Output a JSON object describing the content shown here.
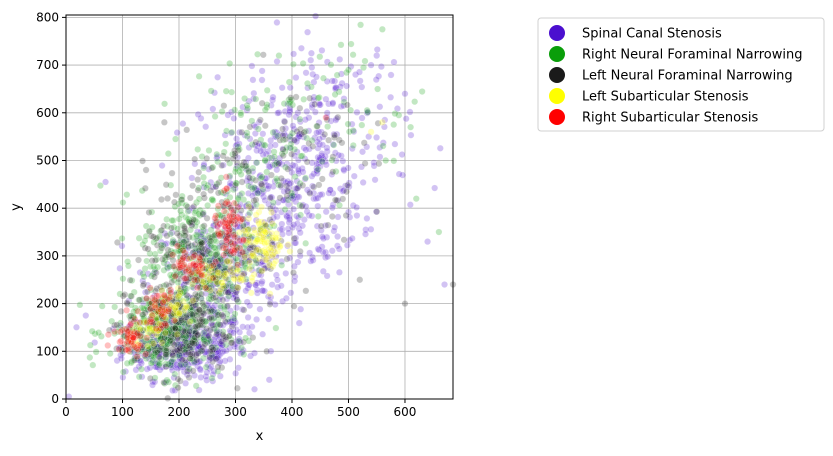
{
  "chart_data": {
    "type": "scatter",
    "xlabel": "x",
    "ylabel": "y",
    "xlim": [
      0,
      685
    ],
    "ylim": [
      0,
      805
    ],
    "xticks": [
      0,
      100,
      200,
      300,
      400,
      500,
      600
    ],
    "yticks": [
      0,
      100,
      200,
      300,
      400,
      500,
      600,
      700,
      800
    ],
    "grid": true,
    "legend_position": "outside-right",
    "series": [
      {
        "name": "Spinal Canal Stenosis",
        "color": "#4b0fcf",
        "clusters": [
          {
            "center": [
              210,
              110
            ],
            "spread": [
              55,
              35
            ],
            "n": 400
          },
          {
            "center": [
              270,
              260
            ],
            "spread": [
              60,
              60
            ],
            "n": 300
          },
          {
            "center": [
              380,
              450
            ],
            "spread": [
              70,
              100
            ],
            "n": 350
          },
          {
            "center": [
              470,
              560
            ],
            "spread": [
              70,
              110
            ],
            "n": 150
          }
        ],
        "points": [
          [
            5,
            5
          ],
          [
            540,
            700
          ],
          [
            600,
            640
          ],
          [
            640,
            330
          ],
          [
            670,
            240
          ],
          [
            35,
            175
          ],
          [
            70,
            455
          ]
        ]
      },
      {
        "name": "Right Neural Foraminal Narrowing",
        "color": "#0a9e0a",
        "clusters": [
          {
            "center": [
              175,
              140
            ],
            "spread": [
              50,
              45
            ],
            "n": 350
          },
          {
            "center": [
              230,
              300
            ],
            "spread": [
              50,
              70
            ],
            "n": 300
          },
          {
            "center": [
              320,
              480
            ],
            "spread": [
              60,
              90
            ],
            "n": 150
          },
          {
            "center": [
              480,
              620
            ],
            "spread": [
              80,
              80
            ],
            "n": 60
          }
        ],
        "points": [
          [
            560,
            775
          ],
          [
            500,
            690
          ],
          [
            620,
            420
          ],
          [
            660,
            350
          ]
        ]
      },
      {
        "name": "Left Neural Foraminal Narrowing",
        "color": "#1a1a1a",
        "clusters": [
          {
            "center": [
              190,
              150
            ],
            "spread": [
              50,
              50
            ],
            "n": 250
          },
          {
            "center": [
              260,
              330
            ],
            "spread": [
              60,
              80
            ],
            "n": 200
          },
          {
            "center": [
              380,
              500
            ],
            "spread": [
              70,
              90
            ],
            "n": 100
          }
        ],
        "points": [
          [
            685,
            240
          ],
          [
            600,
            200
          ],
          [
            520,
            250
          ]
        ]
      },
      {
        "name": "Left Subarticular Stenosis",
        "color": "#ffff00",
        "clusters": [
          {
            "center": [
              350,
              330
            ],
            "spread": [
              18,
              35
            ],
            "n": 90
          },
          {
            "center": [
              270,
              250
            ],
            "spread": [
              25,
              20
            ],
            "n": 50
          },
          {
            "center": [
              190,
              190
            ],
            "spread": [
              20,
              20
            ],
            "n": 40
          },
          {
            "center": [
              150,
              140
            ],
            "spread": [
              18,
              18
            ],
            "n": 30
          }
        ],
        "points": [
          [
            540,
            560
          ],
          [
            560,
            580
          ]
        ]
      },
      {
        "name": "Right Subarticular Stenosis",
        "color": "#ff0000",
        "clusters": [
          {
            "center": [
              290,
              350
            ],
            "spread": [
              15,
              35
            ],
            "n": 70
          },
          {
            "center": [
              220,
              270
            ],
            "spread": [
              18,
              25
            ],
            "n": 50
          },
          {
            "center": [
              165,
              190
            ],
            "spread": [
              15,
              20
            ],
            "n": 40
          },
          {
            "center": [
              115,
              135
            ],
            "spread": [
              15,
              20
            ],
            "n": 50
          }
        ],
        "points": [
          [
            75,
            135
          ],
          [
            460,
            590
          ]
        ]
      }
    ]
  }
}
